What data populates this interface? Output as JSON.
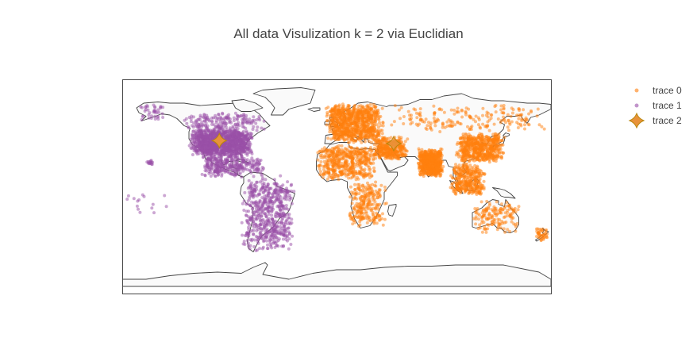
{
  "title": "All data Visulization k = 2 via Euclidian",
  "colors": {
    "trace0": "#ff7f0e",
    "trace1": "#9a4fa8",
    "trace2_fill": "#e8923a",
    "trace2_stroke": "#b8860b",
    "land": "#fafafa",
    "coast": "#444444",
    "frame": "#444444"
  },
  "legend": [
    {
      "label": "trace 0",
      "symbol": "dot"
    },
    {
      "label": "trace 1",
      "symbol": "dot"
    },
    {
      "label": "trace 2",
      "symbol": "star-diamond"
    }
  ],
  "chart_data": {
    "type": "scatter",
    "projection": "equirectangular",
    "lon_range": [
      -180,
      180
    ],
    "lat_range": [
      -90,
      90
    ],
    "series": [
      {
        "name": "trace 0",
        "color": "#ff7f0e",
        "clusters": [
          {
            "region": "europe",
            "lon": [
              -10,
              40
            ],
            "lat": [
              36,
              70
            ],
            "n": 900
          },
          {
            "region": "middle-east",
            "lon": [
              30,
              60
            ],
            "lat": [
              22,
              42
            ],
            "n": 350
          },
          {
            "region": "north-africa",
            "lon": [
              -17,
              35
            ],
            "lat": [
              5,
              35
            ],
            "n": 500
          },
          {
            "region": "central-africa",
            "lon": [
              10,
              42
            ],
            "lat": [
              -35,
              5
            ],
            "n": 250
          },
          {
            "region": "india",
            "lon": [
              68,
              90
            ],
            "lat": [
              8,
              32
            ],
            "n": 600
          },
          {
            "region": "east-asia",
            "lon": [
              100,
              142
            ],
            "lat": [
              20,
              45
            ],
            "n": 600
          },
          {
            "region": "southeast-asia",
            "lon": [
              95,
              125
            ],
            "lat": [
              -8,
              20
            ],
            "n": 350
          },
          {
            "region": "russia",
            "lon": [
              40,
              180
            ],
            "lat": [
              45,
              70
            ],
            "n": 200
          },
          {
            "region": "australia",
            "lon": [
              114,
              154
            ],
            "lat": [
              -40,
              -12
            ],
            "n": 150
          },
          {
            "region": "new-zealand",
            "lon": [
              166,
              178
            ],
            "lat": [
              -46,
              -35
            ],
            "n": 40
          }
        ]
      },
      {
        "name": "trace 1",
        "color": "#9a4fa8",
        "clusters": [
          {
            "region": "usa",
            "lon": [
              -124,
              -70
            ],
            "lat": [
              26,
              48
            ],
            "n": 1200
          },
          {
            "region": "canada",
            "lon": [
              -130,
              -60
            ],
            "lat": [
              45,
              62
            ],
            "n": 200
          },
          {
            "region": "alaska",
            "lon": [
              -165,
              -140
            ],
            "lat": [
              55,
              70
            ],
            "n": 40
          },
          {
            "region": "mexico-central",
            "lon": [
              -115,
              -78
            ],
            "lat": [
              7,
              32
            ],
            "n": 300
          },
          {
            "region": "caribbean",
            "lon": [
              -85,
              -60
            ],
            "lat": [
              10,
              25
            ],
            "n": 80
          },
          {
            "region": "south-america",
            "lon": [
              -80,
              -35
            ],
            "lat": [
              -55,
              10
            ],
            "n": 600
          },
          {
            "region": "hawaii",
            "lon": [
              -160,
              -154
            ],
            "lat": [
              18,
              23
            ],
            "n": 15
          },
          {
            "region": "pacific",
            "lon": [
              -178,
              -140
            ],
            "lat": [
              -25,
              -5
            ],
            "n": 15
          }
        ]
      },
      {
        "name": "trace 2",
        "color": "#e8923a",
        "centroids": [
          {
            "lon": -98.5,
            "lat": 38.5
          },
          {
            "lon": 48.0,
            "lat": 36.0
          }
        ]
      }
    ]
  }
}
